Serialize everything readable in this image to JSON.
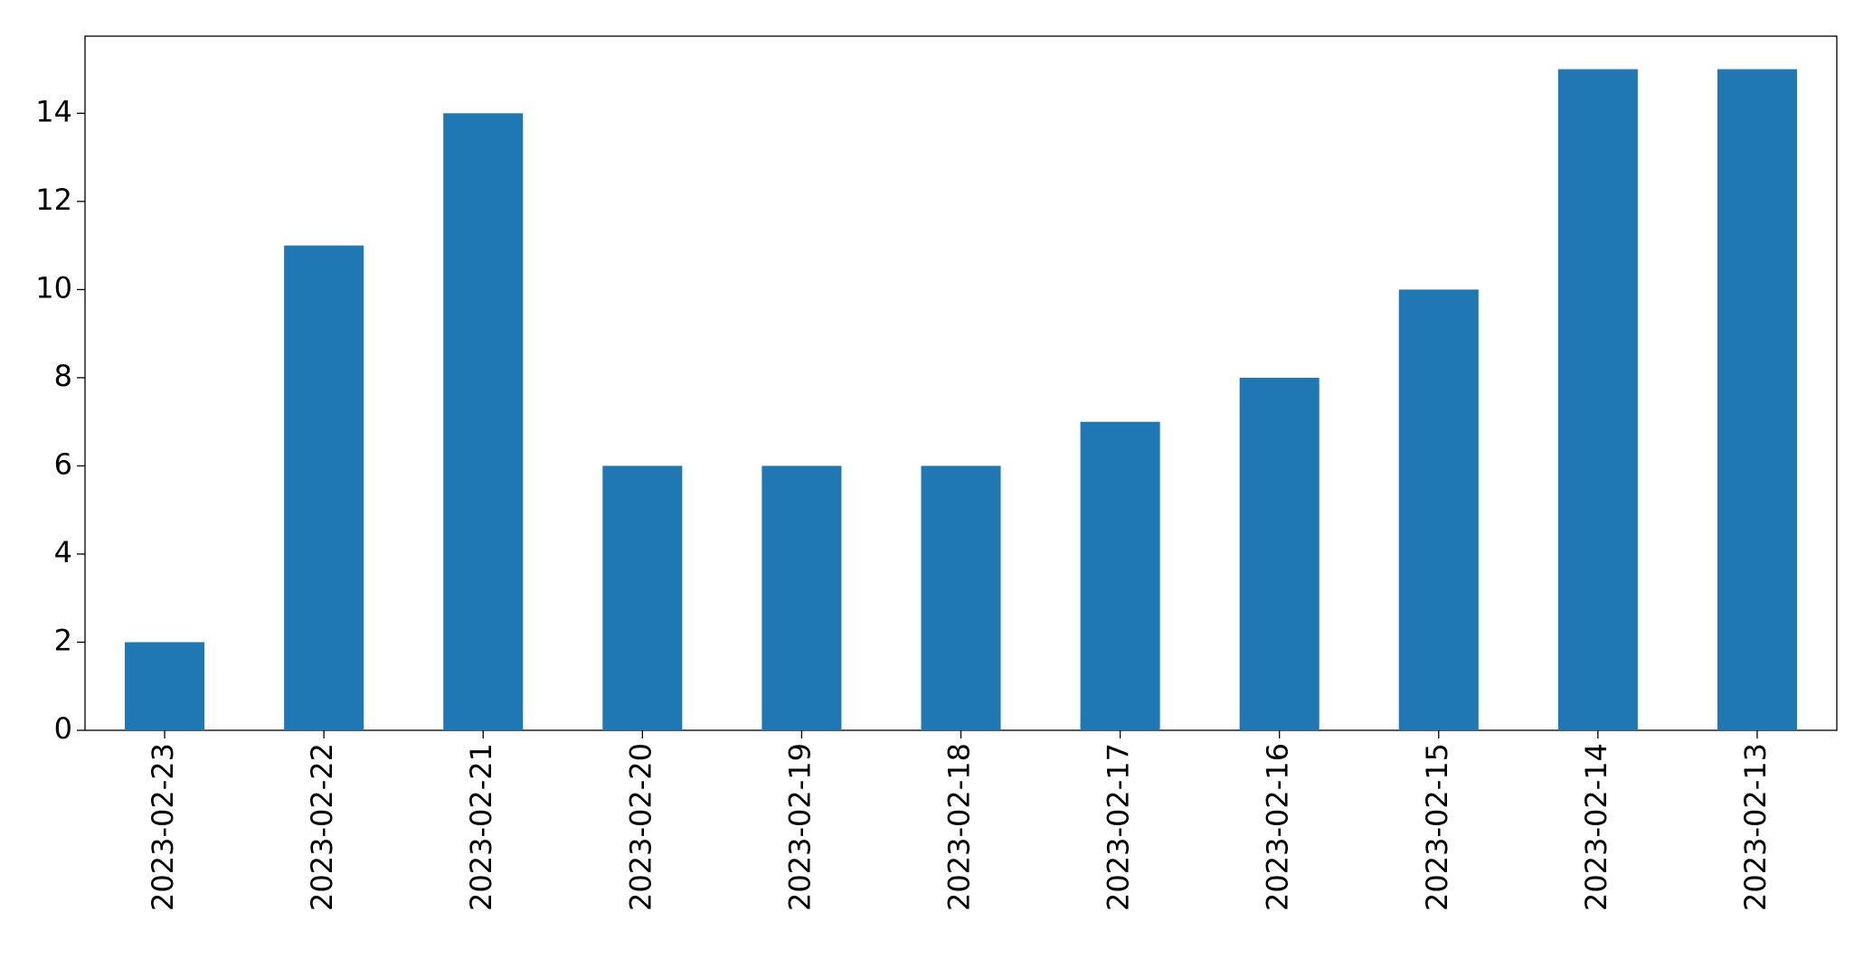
{
  "chart_data": {
    "type": "bar",
    "categories": [
      "2023-02-23",
      "2023-02-22",
      "2023-02-21",
      "2023-02-20",
      "2023-02-19",
      "2023-02-18",
      "2023-02-17",
      "2023-02-16",
      "2023-02-15",
      "2023-02-14",
      "2023-02-13"
    ],
    "values": [
      2,
      11,
      14,
      6,
      6,
      6,
      7,
      8,
      10,
      15,
      15
    ],
    "color": "#1f77b4",
    "ylim": [
      0,
      15.75
    ],
    "yticks": [
      0,
      2,
      4,
      6,
      8,
      10,
      12,
      14
    ],
    "grid": false
  }
}
